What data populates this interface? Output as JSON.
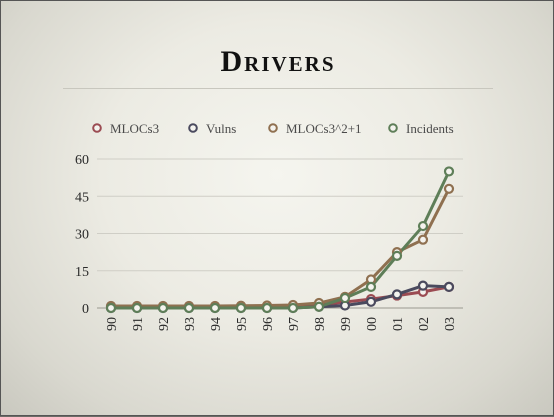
{
  "slide": {
    "title": "Drivers"
  },
  "chart_data": {
    "type": "line",
    "title": "Drivers",
    "x": [
      "90",
      "91",
      "92",
      "93",
      "94",
      "95",
      "96",
      "97",
      "98",
      "99",
      "00",
      "01",
      "02",
      "03"
    ],
    "ylim": [
      0,
      60
    ],
    "yticks": [
      "0",
      "15",
      "30",
      "45",
      "60"
    ],
    "grid": true,
    "legend_position": "top",
    "series": [
      {
        "name": "MLOCs3",
        "color": "#9b4b52",
        "values": [
          0.5,
          0.5,
          0.5,
          0.5,
          0.5,
          0.5,
          0.6,
          0.8,
          1.2,
          2.4,
          3.6,
          5.0,
          6.5,
          8.5
        ]
      },
      {
        "name": "Vulns",
        "color": "#4a4a5e",
        "values": [
          0.0,
          0.0,
          0.0,
          0.0,
          0.0,
          0.0,
          0.0,
          0.0,
          0.5,
          1.0,
          2.5,
          5.5,
          9.0,
          8.5
        ]
      },
      {
        "name": "MLOCs3^2+1",
        "color": "#8f7050",
        "values": [
          0.8,
          0.8,
          0.8,
          0.8,
          0.8,
          0.9,
          1.0,
          1.2,
          2.0,
          4.5,
          11.5,
          22.5,
          27.5,
          48.0
        ]
      },
      {
        "name": "Incidents",
        "color": "#5e7e58",
        "values": [
          0.0,
          0.0,
          0.0,
          0.0,
          0.0,
          0.0,
          0.0,
          0.0,
          0.5,
          4.0,
          8.5,
          21.0,
          33.0,
          55.0
        ]
      }
    ]
  }
}
